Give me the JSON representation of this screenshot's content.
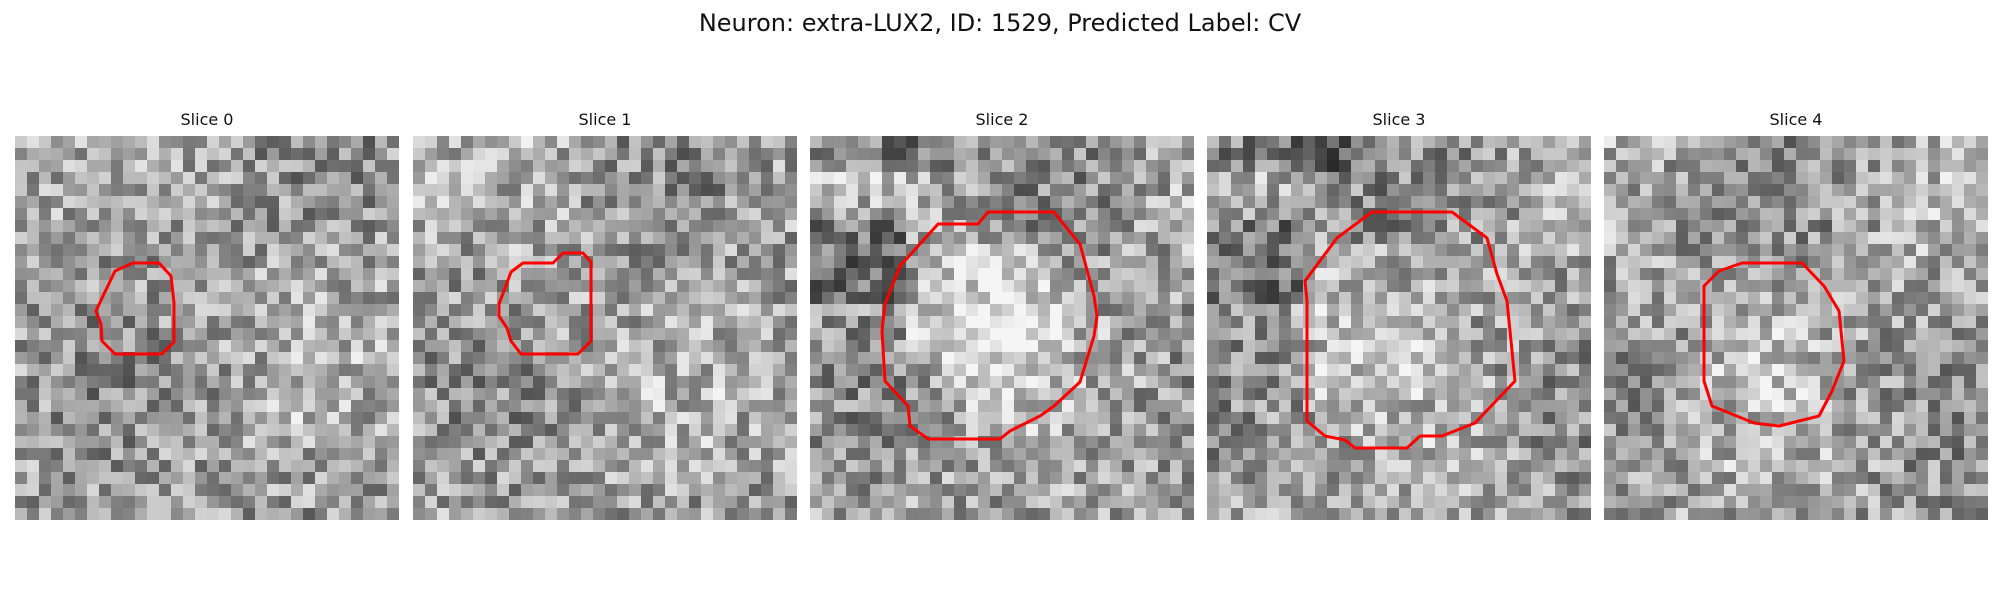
{
  "figure": {
    "title": "Neuron: extra-LUX2, ID: 1529, Predicted Label: CV"
  },
  "colors": {
    "contour": "#ff0000",
    "background": "#ffffff"
  },
  "slices": [
    {
      "title": "Slice 0"
    },
    {
      "title": "Slice 1"
    },
    {
      "title": "Slice 2"
    },
    {
      "title": "Slice 3"
    },
    {
      "title": "Slice 4"
    }
  ]
}
